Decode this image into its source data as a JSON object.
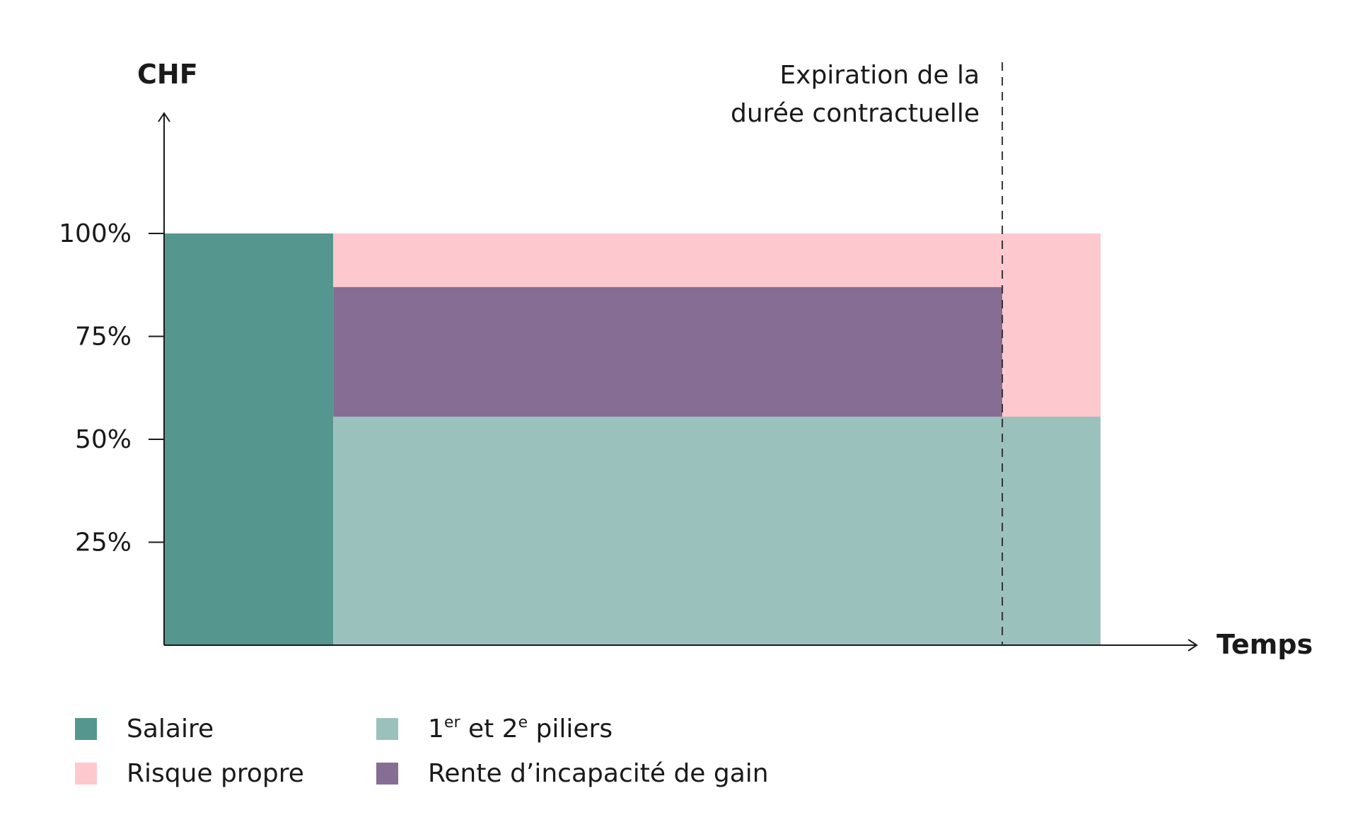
{
  "chart_data": {
    "type": "area",
    "ylabel": "CHF",
    "xlabel": "Temps",
    "y_ticks": [
      {
        "value": 100,
        "label": "100%"
      },
      {
        "value": 75,
        "label": "75%"
      },
      {
        "value": 50,
        "label": "50%"
      },
      {
        "value": 25,
        "label": "25%"
      }
    ],
    "ylim": [
      0,
      100
    ],
    "x_phases": [
      0,
      0.18,
      0.895,
      1.0
    ],
    "annotation": {
      "line1": "Expiration de la",
      "line2": "durée contractuelle",
      "at_phase_index": 2
    },
    "segments": [
      {
        "key": "salaire",
        "phase": 0,
        "bottom": 0,
        "top": 100
      },
      {
        "key": "piliers",
        "phase": 1,
        "bottom": 0,
        "top": 55.5
      },
      {
        "key": "rente",
        "phase": 1,
        "bottom": 55.5,
        "top": 87
      },
      {
        "key": "risque",
        "phase": 1,
        "bottom": 87,
        "top": 100
      },
      {
        "key": "piliers",
        "phase": 2,
        "bottom": 0,
        "top": 55.5
      },
      {
        "key": "risque",
        "phase": 2,
        "bottom": 55.5,
        "top": 100
      }
    ],
    "series": [
      {
        "key": "salaire",
        "name": "Salaire",
        "color": "#55978e"
      },
      {
        "key": "risque",
        "name": "Risque propre",
        "color": "#fec9ce"
      },
      {
        "key": "piliers",
        "name_parts": [
          "1",
          "er",
          " et 2",
          "e",
          " piliers"
        ],
        "color": "#9bc1bd"
      },
      {
        "key": "rente",
        "name": "Rente d’incapacité de gain",
        "color": "#866d93"
      }
    ]
  }
}
